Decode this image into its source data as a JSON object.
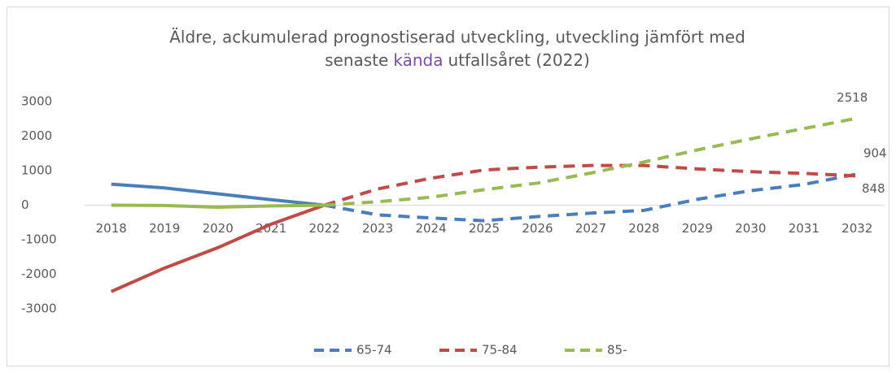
{
  "chart_data": {
    "type": "line",
    "title": [
      "Äldre, ackumulerad prognostiserad utveckling, utveckling jämfört med",
      "senaste",
      "kända",
      "utfallsåret (2022)"
    ],
    "categories": [
      "2018",
      "2019",
      "2020",
      "2021",
      "2022",
      "2023",
      "2024",
      "2025",
      "2026",
      "2027",
      "2028",
      "2029",
      "2030",
      "2031",
      "2032"
    ],
    "series": [
      {
        "name": "65-74",
        "color": "#4a7ebb",
        "values": [
          610,
          500,
          330,
          160,
          0,
          -280,
          -370,
          -450,
          -330,
          -230,
          -150,
          170,
          420,
          600,
          904
        ]
      },
      {
        "name": "75-84",
        "color": "#be4b48",
        "values": [
          -2500,
          -1820,
          -1230,
          -550,
          0,
          470,
          780,
          1020,
          1100,
          1150,
          1150,
          1050,
          970,
          920,
          848
        ]
      },
      {
        "name": "85-",
        "color": "#98b954",
        "values": [
          0,
          -10,
          -60,
          -20,
          0,
          100,
          230,
          450,
          640,
          930,
          1250,
          1600,
          1920,
          2220,
          2518
        ]
      }
    ],
    "dashed_from": 4,
    "ylim": [
      -3000,
      3000
    ],
    "yticks": [
      -3000,
      -2000,
      -1000,
      0,
      1000,
      2000,
      3000
    ],
    "grid": false,
    "legend": "bottom"
  }
}
